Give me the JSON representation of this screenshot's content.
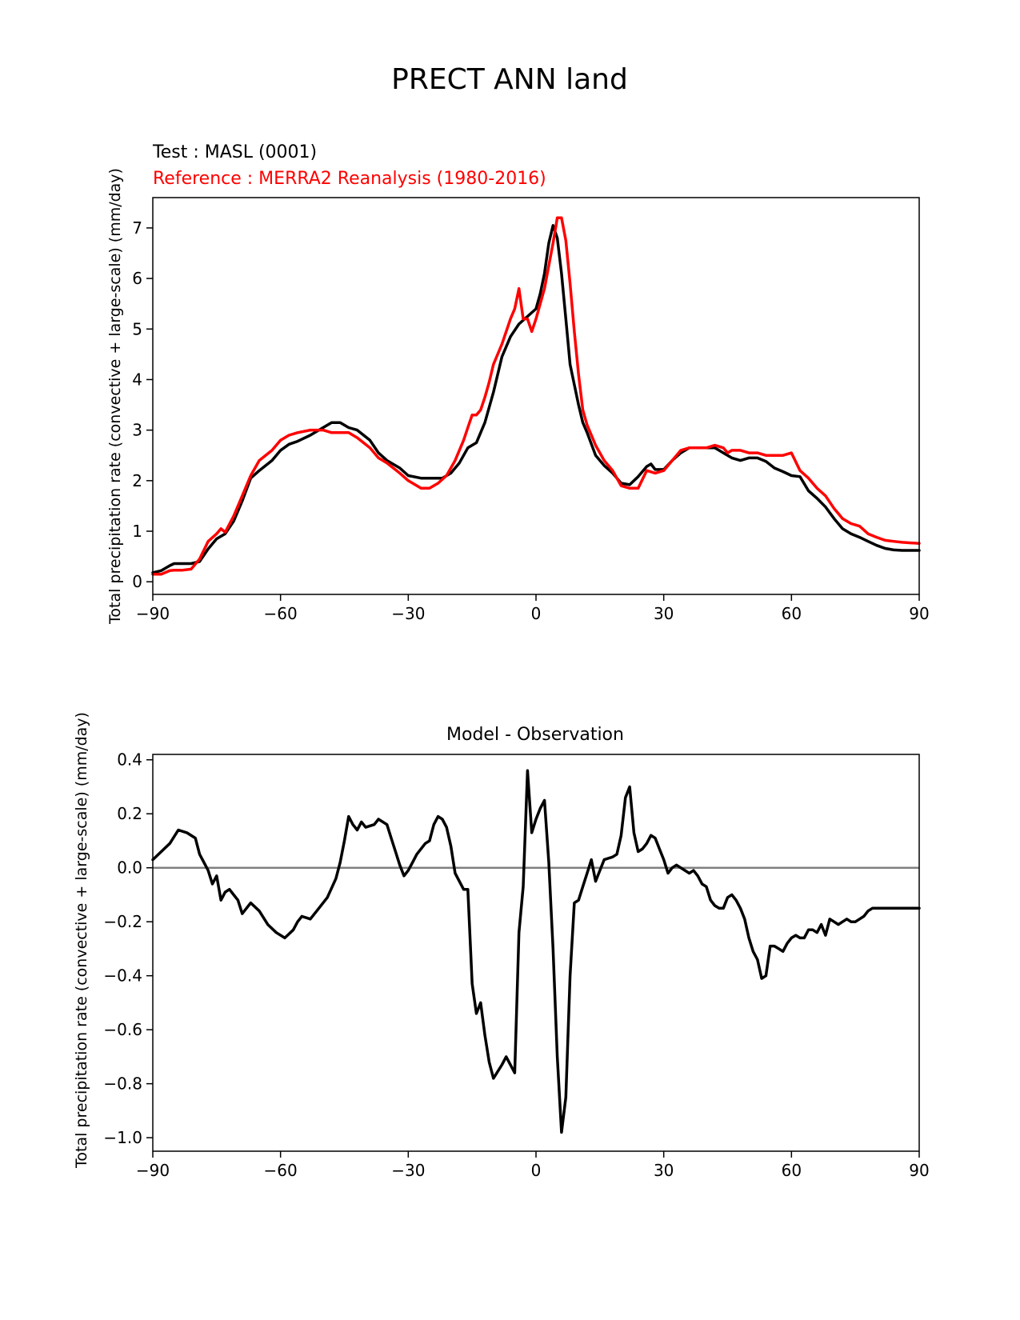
{
  "figure": {
    "title": "PRECT ANN land"
  },
  "chart_data": [
    {
      "type": "line",
      "legend": [
        {
          "text": "Test : MASL (0001)",
          "color": "#000000"
        },
        {
          "text": "Reference : MERRA2 Reanalysis (1980-2016)",
          "color": "#ff0000"
        }
      ],
      "xlabel": "",
      "ylabel": "Total precipitation rate (convective + large-scale) (mm/day)",
      "xlim": [
        -90,
        90
      ],
      "ylim": [
        -0.25,
        7.6
      ],
      "xticks": [
        -90,
        -60,
        -30,
        0,
        30,
        60,
        90
      ],
      "xtick_labels": [
        "−90",
        "−60",
        "−30",
        "0",
        "30",
        "60",
        "90"
      ],
      "yticks": [
        0,
        1,
        2,
        3,
        4,
        5,
        6,
        7
      ],
      "ytick_labels": [
        "0",
        "1",
        "2",
        "3",
        "4",
        "5",
        "6",
        "7"
      ],
      "series": [
        {
          "color": "#000000",
          "x": [
            -90,
            -88,
            -86,
            -85,
            -83,
            -81,
            -79,
            -77,
            -75,
            -73,
            -71,
            -69,
            -67,
            -65,
            -62,
            -60,
            -58,
            -56,
            -53,
            -50,
            -48,
            -46,
            -44,
            -42,
            -39,
            -37,
            -35,
            -32,
            -30,
            -27,
            -25,
            -22,
            -20,
            -18,
            -16,
            -14,
            -12,
            -10,
            -8,
            -6,
            -4,
            -2,
            0,
            1,
            2,
            3,
            4,
            5,
            6,
            7,
            8,
            9,
            10,
            11,
            12,
            14,
            16,
            18,
            20,
            22,
            24,
            26,
            27,
            28,
            30,
            32,
            34,
            36,
            38,
            40,
            42,
            44,
            46,
            48,
            50,
            52,
            54,
            56,
            58,
            60,
            62,
            64,
            66,
            68,
            70,
            72,
            74,
            76,
            78,
            80,
            82,
            84,
            86,
            88,
            90
          ],
          "y": [
            0.18,
            0.22,
            0.32,
            0.36,
            0.36,
            0.36,
            0.4,
            0.65,
            0.85,
            0.95,
            1.2,
            1.6,
            2.05,
            2.2,
            2.4,
            2.6,
            2.72,
            2.78,
            2.9,
            3.05,
            3.15,
            3.15,
            3.05,
            3.0,
            2.8,
            2.55,
            2.4,
            2.25,
            2.1,
            2.05,
            2.05,
            2.05,
            2.15,
            2.35,
            2.65,
            2.75,
            3.15,
            3.75,
            4.45,
            4.85,
            5.1,
            5.25,
            5.4,
            5.7,
            6.1,
            6.7,
            7.05,
            6.8,
            6.1,
            5.2,
            4.3,
            3.9,
            3.5,
            3.15,
            2.95,
            2.5,
            2.3,
            2.15,
            1.95,
            1.92,
            2.08,
            2.28,
            2.33,
            2.22,
            2.22,
            2.4,
            2.55,
            2.65,
            2.65,
            2.65,
            2.65,
            2.55,
            2.45,
            2.4,
            2.45,
            2.45,
            2.38,
            2.25,
            2.18,
            2.1,
            2.08,
            1.8,
            1.65,
            1.48,
            1.25,
            1.05,
            0.95,
            0.88,
            0.8,
            0.72,
            0.66,
            0.63,
            0.62,
            0.62,
            0.62
          ]
        },
        {
          "color": "#ff0000",
          "x": [
            -90,
            -88,
            -86,
            -85,
            -83,
            -81,
            -79,
            -77,
            -75,
            -74,
            -73,
            -71,
            -69,
            -67,
            -65,
            -62,
            -60,
            -58,
            -56,
            -53,
            -50,
            -48,
            -46,
            -44,
            -42,
            -39,
            -37,
            -35,
            -32,
            -30,
            -27,
            -25,
            -23,
            -21,
            -19,
            -17,
            -16,
            -15,
            -14,
            -13,
            -12,
            -11,
            -10,
            -8,
            -6,
            -5,
            -4,
            -3,
            -2,
            -1,
            0,
            2,
            4,
            5,
            6,
            7,
            8,
            9,
            10,
            11,
            12,
            14,
            16,
            18,
            20,
            22,
            24,
            26,
            28,
            30,
            32,
            34,
            36,
            38,
            40,
            42,
            44,
            45,
            46,
            48,
            50,
            52,
            54,
            56,
            58,
            60,
            62,
            64,
            66,
            68,
            70,
            72,
            74,
            76,
            78,
            80,
            82,
            84,
            86,
            88,
            90
          ],
          "y": [
            0.15,
            0.15,
            0.22,
            0.23,
            0.23,
            0.25,
            0.45,
            0.8,
            0.95,
            1.05,
            0.98,
            1.3,
            1.7,
            2.1,
            2.4,
            2.6,
            2.8,
            2.9,
            2.95,
            3.0,
            3.0,
            2.95,
            2.95,
            2.95,
            2.85,
            2.65,
            2.45,
            2.35,
            2.15,
            2.0,
            1.85,
            1.85,
            1.95,
            2.1,
            2.4,
            2.8,
            3.05,
            3.3,
            3.3,
            3.4,
            3.65,
            3.95,
            4.3,
            4.7,
            5.2,
            5.4,
            5.8,
            5.2,
            5.2,
            4.95,
            5.2,
            5.8,
            6.7,
            7.2,
            7.2,
            6.75,
            5.9,
            4.95,
            4.1,
            3.4,
            3.1,
            2.7,
            2.4,
            2.2,
            1.9,
            1.85,
            1.85,
            2.2,
            2.15,
            2.2,
            2.4,
            2.6,
            2.65,
            2.65,
            2.65,
            2.7,
            2.65,
            2.55,
            2.6,
            2.6,
            2.55,
            2.55,
            2.5,
            2.5,
            2.5,
            2.55,
            2.2,
            2.05,
            1.85,
            1.7,
            1.45,
            1.25,
            1.15,
            1.1,
            0.95,
            0.88,
            0.82,
            0.8,
            0.78,
            0.77,
            0.76
          ]
        }
      ]
    },
    {
      "type": "line",
      "title": "Model - Observation",
      "xlabel": "",
      "ylabel": "Total precipitation rate (convective + large-scale) (mm/day)",
      "xlim": [
        -90,
        90
      ],
      "ylim": [
        -1.05,
        0.42
      ],
      "xticks": [
        -90,
        -60,
        -30,
        0,
        30,
        60,
        90
      ],
      "xtick_labels": [
        "−90",
        "−60",
        "−30",
        "0",
        "30",
        "60",
        "90"
      ],
      "yticks": [
        0.4,
        0.2,
        0.0,
        -0.2,
        -0.4,
        -0.6,
        -0.8,
        -1.0
      ],
      "ytick_labels": [
        "0.4",
        "0.2",
        "0.0",
        "−0.2",
        "−0.4",
        "−0.6",
        "−0.8",
        "−1.0"
      ],
      "zero_line": {
        "y": 0.0,
        "color": "#808080"
      },
      "series": [
        {
          "color": "#000000",
          "x": [
            -90,
            -88,
            -86,
            -84,
            -82,
            -80,
            -79,
            -78,
            -77,
            -76,
            -75,
            -74,
            -73,
            -72,
            -71,
            -70,
            -69,
            -67,
            -65,
            -63,
            -61,
            -59,
            -57,
            -56,
            -55,
            -53,
            -51,
            -49,
            -47,
            -46,
            -45,
            -44,
            -43,
            -42,
            -41,
            -40,
            -38,
            -37,
            -35,
            -34,
            -33,
            -32,
            -31,
            -30,
            -29,
            -28,
            -27,
            -26,
            -25,
            -24,
            -23,
            -22,
            -21,
            -20,
            -19,
            -17,
            -16,
            -15,
            -14,
            -13,
            -12,
            -11,
            -10,
            -8,
            -7,
            -5,
            -4,
            -3,
            -2,
            -1,
            0,
            1,
            2,
            3,
            4,
            5,
            6,
            7,
            8,
            9,
            10,
            11,
            12,
            13,
            14,
            16,
            18,
            19,
            20,
            21,
            22,
            23,
            24,
            25,
            26,
            27,
            28,
            29,
            30,
            31,
            32,
            33,
            35,
            36,
            37,
            38,
            39,
            40,
            41,
            42,
            43,
            44,
            45,
            46,
            47,
            48,
            49,
            50,
            51,
            52,
            53,
            54,
            55,
            56,
            57,
            58,
            59,
            60,
            61,
            62,
            63,
            64,
            65,
            66,
            67,
            68,
            69,
            70,
            71,
            72,
            73,
            74,
            75,
            76,
            77,
            78,
            79,
            80,
            81,
            82,
            84,
            86,
            88,
            90
          ],
          "y": [
            0.03,
            0.06,
            0.09,
            0.14,
            0.13,
            0.11,
            0.05,
            0.02,
            -0.01,
            -0.06,
            -0.03,
            -0.12,
            -0.09,
            -0.08,
            -0.1,
            -0.12,
            -0.17,
            -0.13,
            -0.16,
            -0.21,
            -0.24,
            -0.26,
            -0.23,
            -0.2,
            -0.18,
            -0.19,
            -0.15,
            -0.11,
            -0.04,
            0.02,
            0.1,
            0.19,
            0.16,
            0.14,
            0.17,
            0.15,
            0.16,
            0.18,
            0.16,
            0.11,
            0.06,
            0.01,
            -0.03,
            -0.01,
            0.02,
            0.05,
            0.07,
            0.09,
            0.1,
            0.16,
            0.19,
            0.18,
            0.15,
            0.08,
            -0.02,
            -0.08,
            -0.08,
            -0.43,
            -0.54,
            -0.5,
            -0.62,
            -0.72,
            -0.78,
            -0.73,
            -0.7,
            -0.76,
            -0.24,
            -0.07,
            0.36,
            0.13,
            0.18,
            0.22,
            0.25,
            0.02,
            -0.3,
            -0.7,
            -0.98,
            -0.85,
            -0.4,
            -0.13,
            -0.12,
            -0.07,
            -0.02,
            0.03,
            -0.05,
            0.03,
            0.04,
            0.05,
            0.12,
            0.26,
            0.3,
            0.13,
            0.06,
            0.07,
            0.09,
            0.12,
            0.11,
            0.07,
            0.03,
            -0.02,
            0.0,
            0.01,
            -0.01,
            -0.02,
            -0.01,
            -0.03,
            -0.06,
            -0.07,
            -0.12,
            -0.14,
            -0.15,
            -0.15,
            -0.11,
            -0.1,
            -0.12,
            -0.15,
            -0.19,
            -0.26,
            -0.31,
            -0.34,
            -0.41,
            -0.4,
            -0.29,
            -0.29,
            -0.3,
            -0.31,
            -0.28,
            -0.26,
            -0.25,
            -0.26,
            -0.26,
            -0.23,
            -0.23,
            -0.24,
            -0.21,
            -0.25,
            -0.19,
            -0.2,
            -0.21,
            -0.2,
            -0.19,
            -0.2,
            -0.2,
            -0.19,
            -0.18,
            -0.16,
            -0.15,
            -0.15,
            -0.15,
            -0.15,
            -0.15,
            -0.15,
            -0.15,
            -0.15
          ]
        }
      ]
    }
  ]
}
